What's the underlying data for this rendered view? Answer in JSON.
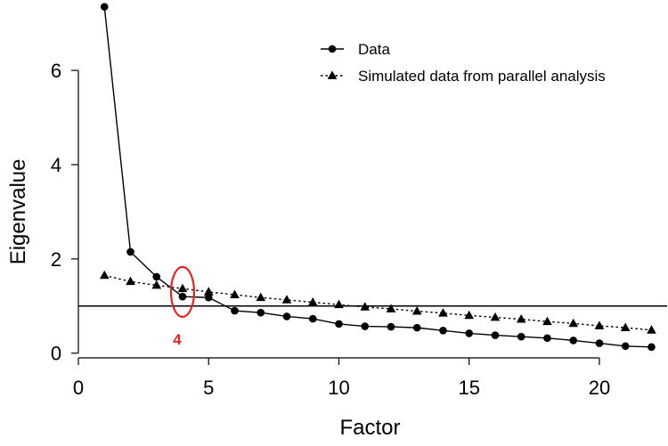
{
  "chart_data": {
    "type": "line",
    "title": "",
    "xlabel": "Factor",
    "ylabel": "Eigenvalue",
    "xlim": [
      0,
      22.6
    ],
    "ylim": [
      -0.1,
      7.4
    ],
    "x_ticks": [
      0,
      5,
      10,
      15,
      20
    ],
    "y_ticks": [
      0,
      2,
      4,
      6
    ],
    "grid": false,
    "legend_position": "top-right",
    "reference_line": {
      "y": 1.0,
      "color": "#000000"
    },
    "series": [
      {
        "name": "Data",
        "marker": "circle",
        "line_style": "solid",
        "color": "#000000",
        "x": [
          1,
          2,
          3,
          4,
          5,
          6,
          7,
          8,
          9,
          10,
          11,
          12,
          13,
          14,
          15,
          16,
          17,
          18,
          19,
          20,
          21,
          22
        ],
        "y": [
          7.35,
          2.15,
          1.62,
          1.2,
          1.18,
          0.9,
          0.86,
          0.78,
          0.73,
          0.62,
          0.57,
          0.56,
          0.54,
          0.48,
          0.42,
          0.38,
          0.35,
          0.32,
          0.27,
          0.21,
          0.15,
          0.13
        ]
      },
      {
        "name": "Simulated data from parallel analysis",
        "marker": "triangle",
        "line_style": "dotted",
        "color": "#000000",
        "x": [
          1,
          2,
          3,
          4,
          5,
          6,
          7,
          8,
          9,
          10,
          11,
          12,
          13,
          14,
          15,
          16,
          17,
          18,
          19,
          20,
          21,
          22
        ],
        "y": [
          1.65,
          1.52,
          1.44,
          1.37,
          1.3,
          1.24,
          1.18,
          1.13,
          1.08,
          1.03,
          0.98,
          0.94,
          0.89,
          0.85,
          0.8,
          0.76,
          0.72,
          0.67,
          0.63,
          0.58,
          0.54,
          0.49
        ]
      }
    ],
    "annotation": {
      "label": "4",
      "x": 4,
      "y": 1.3,
      "color": "#e8231f"
    }
  }
}
